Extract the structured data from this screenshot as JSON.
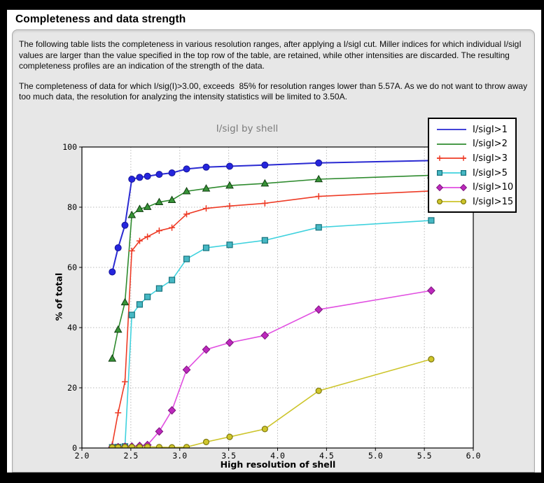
{
  "header": {
    "title": "Completeness and data strength"
  },
  "intro": {
    "p1": "The following table lists the completeness in various resolution ranges, after applying a I/sigI cut. Miller indices for which individual I/sigI values are larger than the value specified in the top row of the table, are retained, while other intensities are discarded. The resulting completeness profiles are an indication of the strength of the data.",
    "p2": "The completeness of data for which I/sig(I)>3.00, exceeds  85% for resolution ranges lower than 5.57A. As we do not want to throw away too much data, the resolution for analyzing the intensity statistics will be limited to 3.50A."
  },
  "chart_data": {
    "type": "line",
    "title": "I/sigI by shell",
    "xlabel": "High resolution of shell",
    "ylabel": "% of total",
    "xlim": [
      2.0,
      6.0
    ],
    "ylim": [
      0,
      100
    ],
    "x_ticks": [
      2.0,
      2.5,
      3.0,
      3.5,
      4.0,
      4.5,
      5.0,
      5.5,
      6.0
    ],
    "y_ticks": [
      0,
      20,
      40,
      60,
      80,
      100
    ],
    "grid": "dashed",
    "plot_bg": "#ffffff",
    "grid_color": "#b8b8b8",
    "legend_position": "upper-right",
    "x": [
      2.31,
      2.37,
      2.44,
      2.51,
      2.59,
      2.67,
      2.79,
      2.92,
      3.07,
      3.27,
      3.51,
      3.87,
      4.42,
      5.57
    ],
    "series": [
      {
        "name": "I/sigI>1",
        "color": "#2a2ad2",
        "marker": "circle",
        "marker_fill": "#2525dd",
        "marker_edge": "#151599",
        "legend_marker": false,
        "values": [
          58.5,
          66.5,
          74.0,
          89.3,
          89.9,
          90.3,
          90.9,
          91.4,
          92.7,
          93.3,
          93.6,
          94.0,
          94.7,
          95.5
        ]
      },
      {
        "name": "I/sigI>2",
        "color": "#2f8b2f",
        "marker": "triangle",
        "marker_fill": "#379337",
        "marker_edge": "#113f11",
        "legend_marker": false,
        "values": [
          29.7,
          39.3,
          48.4,
          77.4,
          79.4,
          80.1,
          81.7,
          82.4,
          85.3,
          86.2,
          87.2,
          87.9,
          89.3,
          90.6
        ]
      },
      {
        "name": "I/sigI>3",
        "color": "#ee3b26",
        "marker": "plus",
        "marker_fill": "#ee3b26",
        "marker_edge": "#ee3b26",
        "legend_marker": true,
        "values": [
          1.1,
          11.7,
          22.0,
          65.5,
          68.8,
          70.2,
          72.2,
          73.2,
          77.7,
          79.6,
          80.4,
          81.3,
          83.6,
          85.4
        ]
      },
      {
        "name": "I/sigI>5",
        "color": "#3fd2de",
        "marker": "square",
        "marker_fill": "#46b8c4",
        "marker_edge": "#17727c",
        "legend_marker": true,
        "values": [
          0.2,
          0.3,
          0.5,
          44.2,
          47.7,
          50.2,
          53.0,
          55.8,
          62.8,
          66.5,
          67.5,
          69.0,
          73.3,
          75.6
        ]
      },
      {
        "name": "I/sigI>10",
        "color": "#e14fe1",
        "marker": "diamond",
        "marker_fill": "#bd28bd",
        "marker_edge": "#7c147c",
        "legend_marker": true,
        "values": [
          0.3,
          0.3,
          0.4,
          0.5,
          0.7,
          1.0,
          5.5,
          12.5,
          26.0,
          32.7,
          35.0,
          37.4,
          46.0,
          52.3
        ]
      },
      {
        "name": "I/sigI>15",
        "color": "#cdc52c",
        "marker": "circle-small",
        "marker_fill": "#cfc62b",
        "marker_edge": "#7f790f",
        "legend_marker": true,
        "values": [
          0.2,
          0.2,
          0.3,
          0.3,
          0.3,
          0.4,
          0.3,
          0.2,
          0.3,
          2.0,
          3.7,
          6.3,
          19.0,
          29.5
        ]
      }
    ]
  }
}
